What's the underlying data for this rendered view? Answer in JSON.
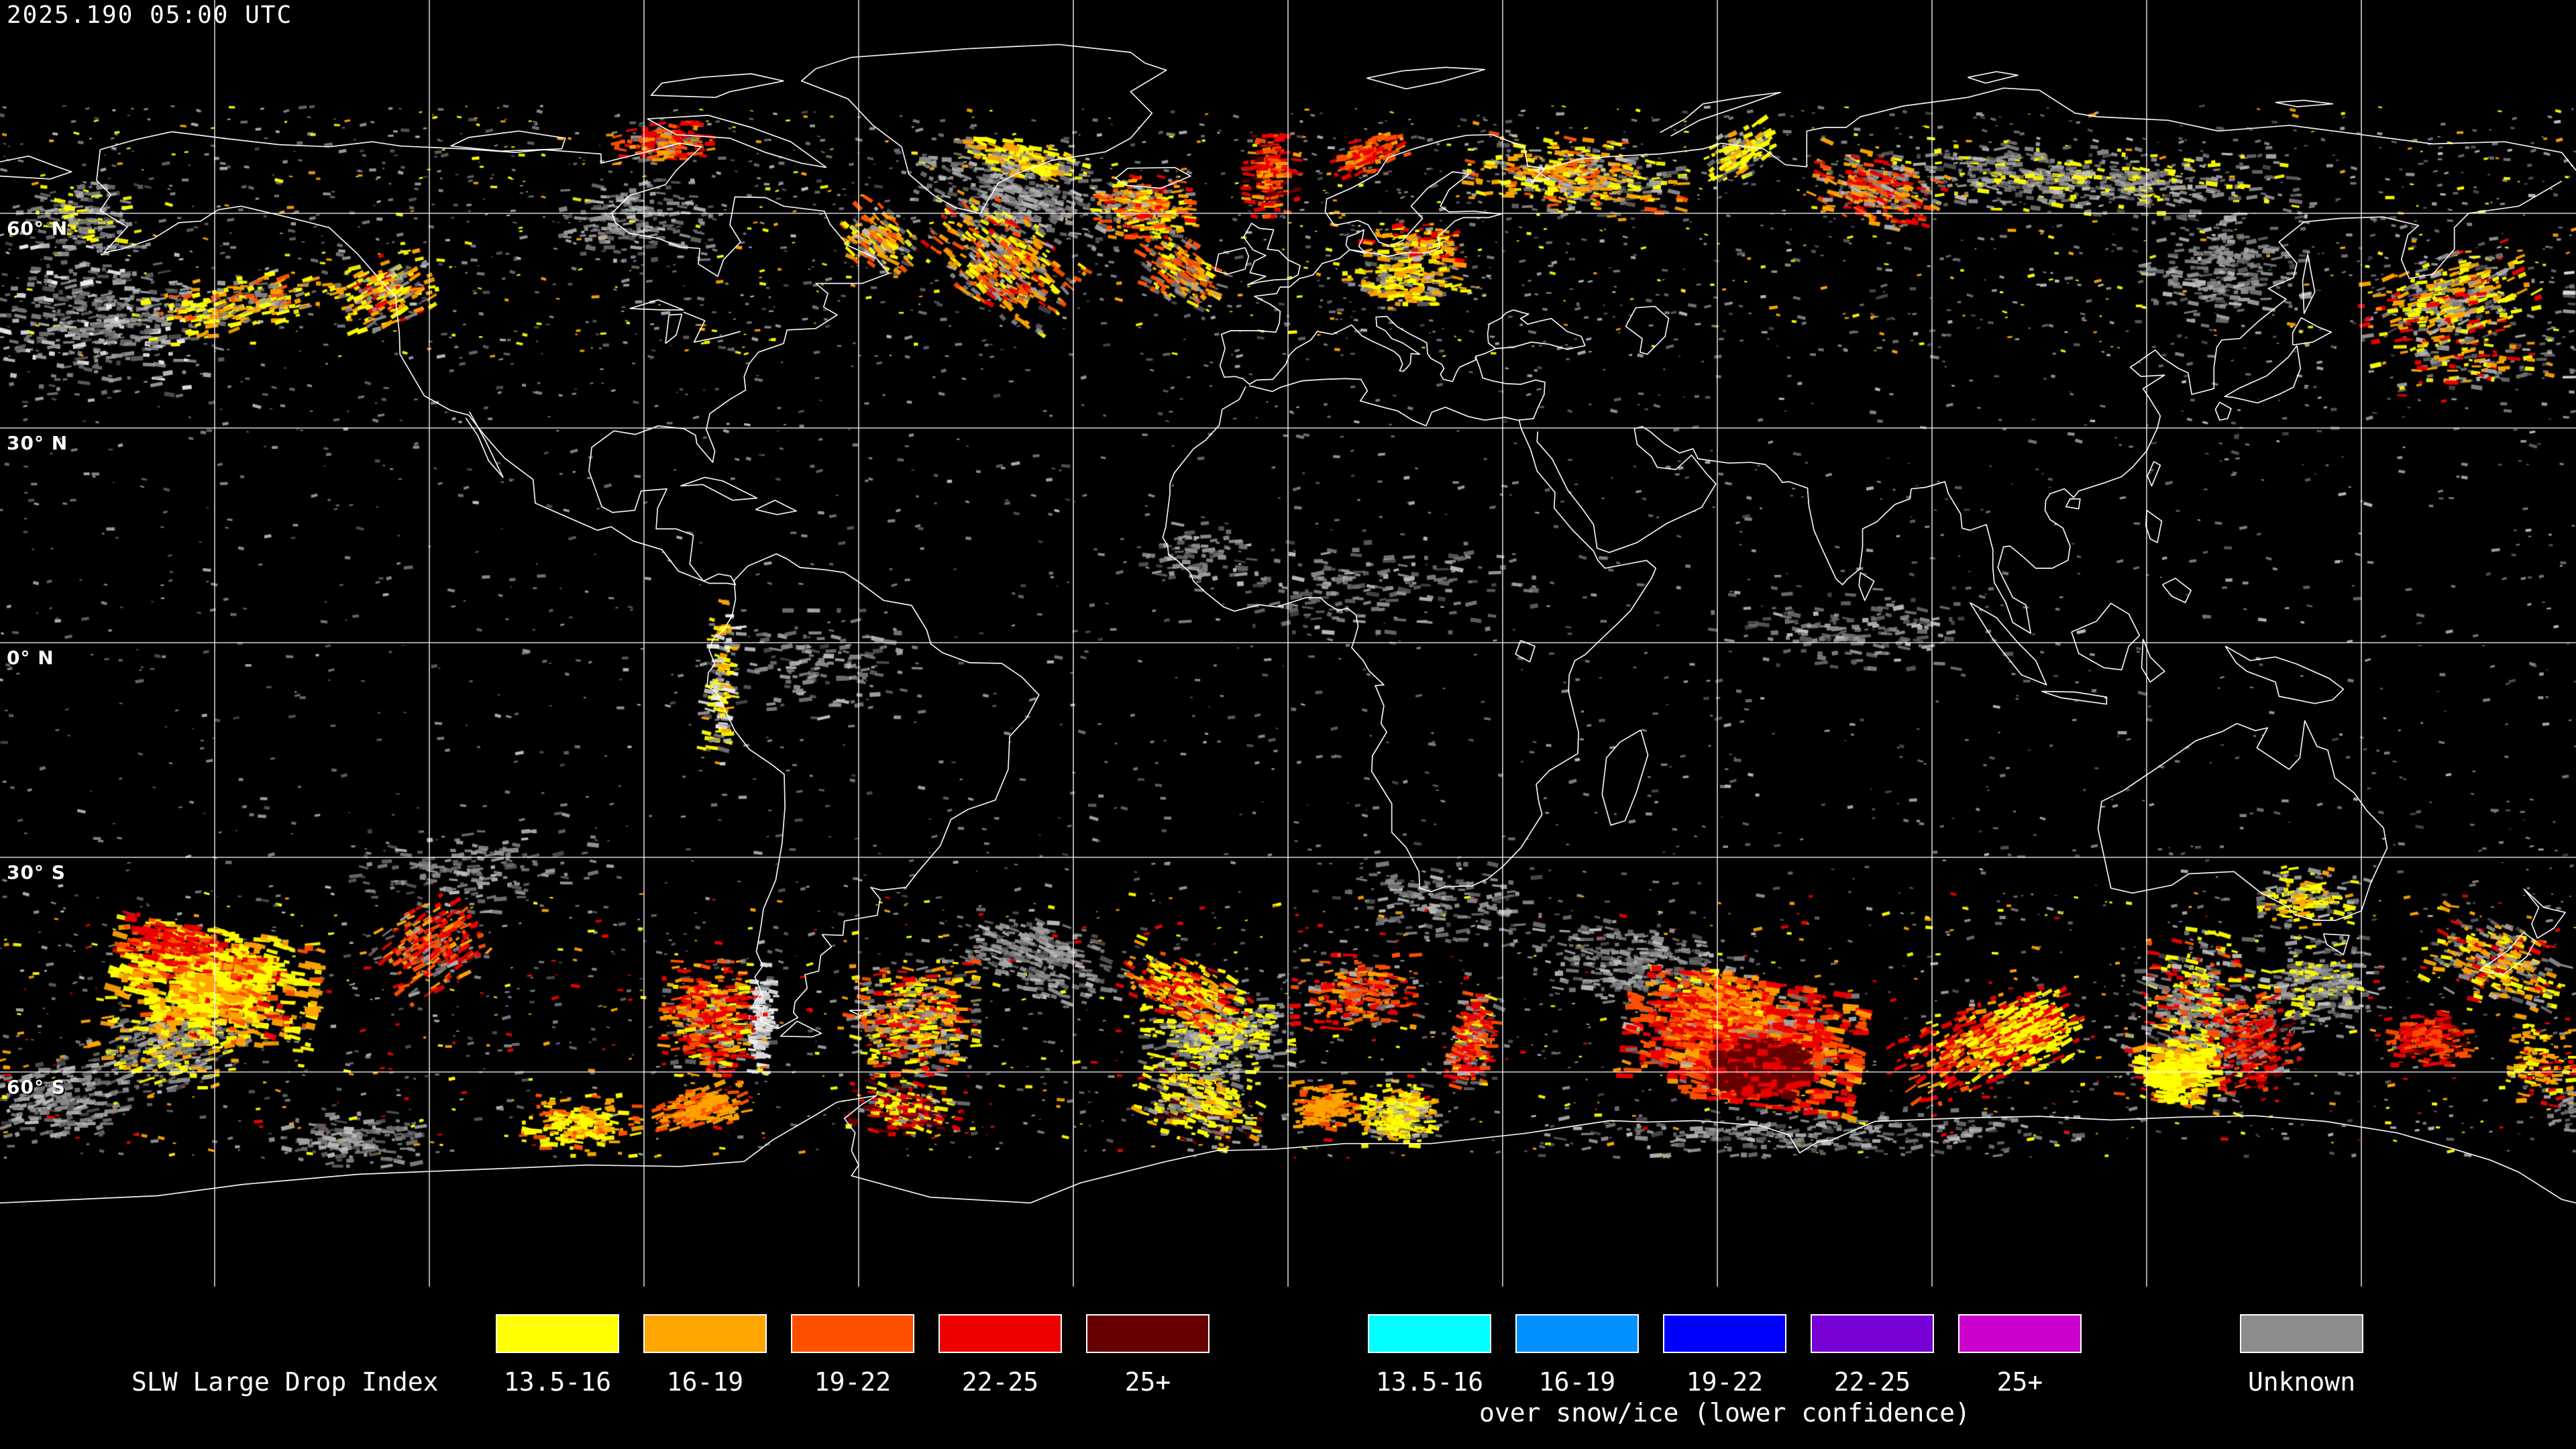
{
  "header": {
    "timestamp": "2025.190 05:00 UTC"
  },
  "map": {
    "projection": "equirectangular",
    "lat_labels": [
      {
        "label": "60° N",
        "lat": 60
      },
      {
        "label": "30° N",
        "lat": 30
      },
      {
        "label": "0° N",
        "lat": 0
      },
      {
        "label": "30° S",
        "lat": -30
      },
      {
        "label": "60° S",
        "lat": -60
      }
    ],
    "grid": {
      "lon_lines": [
        -150,
        -120,
        -90,
        -60,
        -30,
        0,
        30,
        60,
        90,
        120,
        150
      ],
      "lat_lines": [
        60,
        30,
        0,
        -30,
        -60
      ],
      "line_color": "#ffffff"
    },
    "coast_color": "#ffffff",
    "background_color": "#000000",
    "palette": {
      "y": "#ffff00",
      "o": "#ffa500",
      "rr": "#ff5000",
      "r": "#ee0000",
      "dr": "#660000",
      "g": "#8c8c8c",
      "w": "#e6e6e6"
    },
    "sprinkle_bands": [
      {
        "lat0": 40,
        "lat1": 75,
        "n": 2400,
        "w": {
          "g": 6,
          "y": 1,
          "o": 1
        }
      },
      {
        "lat0": 20,
        "lat1": 40,
        "n": 500,
        "w": {
          "g": 2
        }
      },
      {
        "lat0": -20,
        "lat1": 20,
        "n": 800,
        "w": {
          "g": 1
        }
      },
      {
        "lat0": -35,
        "lat1": -20,
        "n": 350,
        "w": {
          "g": 2
        }
      },
      {
        "lat0": -72,
        "lat1": -35,
        "n": 2000,
        "w": {
          "g": 5,
          "y": 1,
          "o": 1,
          "r": 1
        }
      }
    ],
    "clusters": [
      {
        "id": "ne-pacific-cloud",
        "lon": -165,
        "lat": 45,
        "rx": 170,
        "ry": 110,
        "rot": 0,
        "n": 420,
        "w": {
          "g": 5,
          "w": 1
        }
      },
      {
        "id": "bering-west-cloud",
        "lon": -168.8,
        "lat": 59,
        "rx": 90,
        "ry": 50,
        "rot": 0,
        "n": 160,
        "w": {
          "g": 3,
          "y": 1
        }
      },
      {
        "id": "hudson-cloud",
        "lon": -91,
        "lat": 59,
        "rx": 110,
        "ry": 60,
        "rot": 0,
        "n": 180,
        "w": {
          "g": 3
        }
      },
      {
        "id": "greenland-cloud-deck",
        "lon": -38.4,
        "lat": 62.8,
        "rx": 140,
        "ry": 55,
        "rot": 15,
        "n": 320,
        "w": {
          "g": 4
        }
      },
      {
        "id": "arctic-siberia-band",
        "lon": 110,
        "lat": 64.7,
        "rx": 330,
        "ry": 50,
        "rot": 3,
        "n": 520,
        "w": {
          "g": 4,
          "y": 1
        }
      },
      {
        "id": "okhotsk-cloud",
        "lon": 131,
        "lat": 52.5,
        "rx": 120,
        "ry": 80,
        "rot": 0,
        "n": 240,
        "w": {
          "g": 3
        }
      },
      {
        "id": "itcz-africa-cloud",
        "lon": 10,
        "lat": 8,
        "rx": 260,
        "ry": 70,
        "rot": 0,
        "n": 180,
        "w": {
          "g": 2
        }
      },
      {
        "id": "itcz-indian-cloud",
        "lon": 80,
        "lat": 2,
        "rx": 220,
        "ry": 60,
        "rot": 0,
        "n": 150,
        "w": {
          "g": 2
        }
      },
      {
        "id": "amazon-cloud",
        "lon": -65,
        "lat": -3,
        "rx": 150,
        "ry": 80,
        "rot": 0,
        "n": 140,
        "w": {
          "g": 2
        }
      },
      {
        "id": "wafrica-cloud",
        "lon": -13,
        "lat": 12,
        "rx": 80,
        "ry": 50,
        "rot": 0,
        "n": 80,
        "w": {
          "g": 2
        }
      },
      {
        "id": "spac-subtrop-cloud",
        "lon": -114,
        "lat": -32,
        "rx": 180,
        "ry": 60,
        "rot": 0,
        "n": 160,
        "w": {
          "g": 2
        }
      },
      {
        "id": "s-africa-cloud",
        "lon": 21.6,
        "lat": -36.6,
        "rx": 140,
        "ry": 60,
        "rot": 0,
        "n": 160,
        "w": {
          "g": 2
        }
      },
      {
        "id": "s-atlantic-midlat-cloud",
        "lon": -34.7,
        "lat": -44,
        "rx": 130,
        "ry": 55,
        "rot": 15,
        "n": 260,
        "w": {
          "g": 3
        }
      },
      {
        "id": "s-indian-midlat-cloud",
        "lon": 49.7,
        "lat": -45,
        "rx": 160,
        "ry": 60,
        "rot": 5,
        "n": 280,
        "w": {
          "g": 3
        }
      },
      {
        "id": "far-spac-cloud",
        "lon": -171.6,
        "lat": -63.8,
        "rx": 130,
        "ry": 60,
        "rot": -10,
        "n": 260,
        "w": {
          "g": 4
        }
      },
      {
        "id": "sep-south-cloud",
        "lon": -156,
        "lat": -56.3,
        "rx": 120,
        "ry": 70,
        "rot": -10,
        "n": 400,
        "w": {
          "g": 4,
          "o": 1,
          "y": 1
        }
      },
      {
        "id": "s-atlantic-swirl-cloud",
        "lon": -9.8,
        "lat": -54.8,
        "rx": 110,
        "ry": 70,
        "rot": 0,
        "n": 420,
        "w": {
          "g": 4,
          "y": 2
        }
      },
      {
        "id": "tasmania-front-cloud",
        "lon": 126.6,
        "lat": -52.5,
        "rx": 90,
        "ry": 130,
        "rot": 10,
        "n": 550,
        "w": {
          "g": 4,
          "y": 2,
          "rr": 1,
          "r": 1
        }
      },
      {
        "id": "tasman-cloud",
        "lon": 144.4,
        "lat": -47.8,
        "rx": 90,
        "ry": 70,
        "rot": 0,
        "n": 260,
        "w": {
          "g": 3,
          "y": 1
        }
      },
      {
        "id": "antarctic-coast-cloud",
        "lon": 73,
        "lat": -68.4,
        "rx": 400,
        "ry": 35,
        "rot": 0,
        "n": 260,
        "w": {
          "g": 3
        }
      },
      {
        "id": "ross-cloud",
        "lon": -131,
        "lat": -69.4,
        "rx": 120,
        "ry": 40,
        "rot": 0,
        "n": 150,
        "w": {
          "g": 3
        }
      },
      {
        "id": "drake-cyclone",
        "lon": -52.5,
        "lat": -52.5,
        "rx": 95,
        "ry": 85,
        "rot": 0,
        "n": 480,
        "w": {
          "g": 3,
          "o": 2,
          "rr": 1,
          "y": 2,
          "r": 1
        }
      },
      {
        "id": "wpac-specks",
        "lon": 166,
        "lat": 39.4,
        "rx": 110,
        "ry": 60,
        "rot": 0,
        "n": 140,
        "w": {
          "y": 1,
          "o": 1,
          "r": 1,
          "g": 2
        }
      },
      {
        "id": "nz-northwest-specks",
        "lon": 168.8,
        "lat": -45,
        "rx": 100,
        "ry": 60,
        "rot": 20,
        "n": 280,
        "w": {
          "g": 2,
          "o": 2,
          "r": 1,
          "y": 1
        }
      },
      {
        "id": "aleutian-streaks",
        "lon": -146.2,
        "lat": 47.3,
        "rx": 140,
        "ry": 38,
        "rot": -12,
        "n": 240,
        "w": {
          "y": 3,
          "o": 2,
          "rr": 1,
          "g": 2
        }
      },
      {
        "id": "gulf-alaska-streaks",
        "lon": -126.1,
        "lat": 49.2,
        "rx": 70,
        "ry": 50,
        "rot": -25,
        "n": 190,
        "w": {
          "y": 2,
          "o": 2,
          "r": 1,
          "g": 2
        }
      },
      {
        "id": "canadian-arctic-red",
        "lon": -87.2,
        "lat": 69.8,
        "rx": 70,
        "ry": 30,
        "rot": 0,
        "n": 150,
        "w": {
          "r": 2,
          "rr": 2,
          "o": 1,
          "g": 1
        }
      },
      {
        "id": "labrador-streaks",
        "lon": -57.2,
        "lat": 56.3,
        "rx": 55,
        "ry": 45,
        "rot": 35,
        "n": 140,
        "w": {
          "o": 2,
          "rr": 1,
          "y": 1,
          "g": 2
        }
      },
      {
        "id": "greenland-se-storm",
        "lon": -39.8,
        "lat": 53.4,
        "rx": 110,
        "ry": 70,
        "rot": 35,
        "n": 420,
        "w": {
          "o": 2,
          "rr": 2,
          "r": 1,
          "y": 2,
          "g": 3
        }
      },
      {
        "id": "greenland-east-yellow",
        "lon": -36.6,
        "lat": 67.5,
        "rx": 90,
        "ry": 26,
        "rot": 12,
        "n": 170,
        "w": {
          "y": 3,
          "o": 2,
          "g": 2
        }
      },
      {
        "id": "iceland-storm",
        "lon": -20.2,
        "lat": 60.9,
        "rx": 70,
        "ry": 45,
        "rot": 0,
        "n": 260,
        "w": {
          "o": 2,
          "rr": 2,
          "y": 2,
          "r": 1,
          "g": 2
        }
      },
      {
        "id": "norwegian-sea-red",
        "lon": -2.3,
        "lat": 65.2,
        "rx": 38,
        "ry": 60,
        "rot": 0,
        "n": 160,
        "w": {
          "r": 3,
          "rr": 2,
          "dr": 1,
          "o": 1
        }
      },
      {
        "id": "s-iceland-streaks",
        "lon": -15,
        "lat": 52,
        "rx": 65,
        "ry": 45,
        "rot": 30,
        "n": 180,
        "w": {
          "rr": 2,
          "o": 2,
          "y": 1,
          "g": 2
        }
      },
      {
        "id": "norway-coast-red",
        "lon": 11.2,
        "lat": 68.2,
        "rx": 55,
        "ry": 25,
        "rot": -20,
        "n": 110,
        "w": {
          "r": 2,
          "rr": 2,
          "o": 1
        }
      },
      {
        "id": "kola-band",
        "lon": 40.3,
        "lat": 65.2,
        "rx": 160,
        "ry": 55,
        "rot": 5,
        "n": 420,
        "w": {
          "y": 2,
          "o": 2,
          "rr": 1,
          "g": 3
        }
      },
      {
        "id": "novaya-zemlya-yellow",
        "lon": 63.3,
        "lat": 68.6,
        "rx": 55,
        "ry": 35,
        "rot": -30,
        "n": 120,
        "w": {
          "y": 3,
          "o": 1,
          "g": 1
        }
      },
      {
        "id": "baltic-specks",
        "lon": 17.8,
        "lat": 55.1,
        "rx": 80,
        "ry": 40,
        "rot": 0,
        "n": 150,
        "w": {
          "o": 2,
          "r": 1,
          "y": 1,
          "g": 1
        }
      },
      {
        "id": "central-europe-specks",
        "lon": 16.4,
        "lat": 50.6,
        "rx": 90,
        "ry": 35,
        "rot": 0,
        "n": 170,
        "w": {
          "y": 2,
          "o": 2,
          "g": 2
        }
      },
      {
        "id": "west-siberia-streaks",
        "lon": 82.5,
        "lat": 63.3,
        "rx": 95,
        "ry": 50,
        "rot": 15,
        "n": 260,
        "w": {
          "o": 2,
          "r": 2,
          "rr": 1,
          "g": 2
        }
      },
      {
        "id": "kamchatka-cluster",
        "lon": 162.2,
        "lat": 47.8,
        "rx": 130,
        "ry": 65,
        "rot": -15,
        "n": 360,
        "w": {
          "y": 2,
          "o": 2,
          "r": 1,
          "g": 3
        }
      },
      {
        "id": "andes-north-specks",
        "lon": -79.2,
        "lat": -5.6,
        "rx": 22,
        "ry": 120,
        "rot": 5,
        "n": 130,
        "w": {
          "y": 2,
          "o": 1,
          "g": 1,
          "w": 1
        }
      },
      {
        "id": "andes-snow",
        "lon": -73.5,
        "lat": -52.5,
        "rx": 18,
        "ry": 80,
        "rot": 5,
        "n": 150,
        "w": {
          "w": 4,
          "g": 1
        }
      },
      {
        "id": "sep-yellow-mass",
        "lon": -150,
        "lat": -47.8,
        "rx": 150,
        "ry": 80,
        "rot": 8,
        "n": 750,
        "sz": [
          8,
          26,
          4,
          10
        ],
        "w": {
          "y": 4,
          "o": 3,
          "rr": 1,
          "r": 1
        }
      },
      {
        "id": "sep-north-red",
        "lon": -156,
        "lat": -41.7,
        "rx": 70,
        "ry": 30,
        "rot": 10,
        "n": 140,
        "w": {
          "r": 3,
          "rr": 1
        }
      },
      {
        "id": "spac-red-streaks",
        "lon": -120,
        "lat": -42.7,
        "rx": 75,
        "ry": 60,
        "rot": -30,
        "n": 240,
        "w": {
          "r": 3,
          "rr": 2,
          "o": 1,
          "g": 1
        }
      },
      {
        "id": "chile-red-storm",
        "lon": -80.2,
        "lat": -52.5,
        "rx": 75,
        "ry": 85,
        "rot": 0,
        "n": 420,
        "w": {
          "r": 3,
          "rr": 2,
          "o": 2,
          "y": 1,
          "g": 1
        }
      },
      {
        "id": "bellingshausen-orange-arc",
        "lon": -82,
        "lat": -65.2,
        "rx": 65,
        "ry": 30,
        "rot": -15,
        "n": 180,
        "w": {
          "o": 3,
          "rr": 2
        }
      },
      {
        "id": "weddell-red-yellow",
        "lon": -53.4,
        "lat": -65.2,
        "rx": 85,
        "ry": 40,
        "rot": 10,
        "n": 240,
        "w": {
          "r": 2,
          "dr": 2,
          "y": 2,
          "g": 1
        }
      },
      {
        "id": "s-atlantic-streak",
        "lon": -14.1,
        "lat": -48.8,
        "rx": 95,
        "ry": 45,
        "rot": 25,
        "n": 260,
        "w": {
          "y": 3,
          "o": 2,
          "r": 2,
          "rr": 1
        }
      },
      {
        "id": "s-atlantic-yellow-south",
        "lon": -12.2,
        "lat": -64.7,
        "rx": 90,
        "ry": 55,
        "rot": 15,
        "n": 300,
        "w": {
          "y": 3,
          "o": 1,
          "dr": 1,
          "g": 2
        }
      },
      {
        "id": "s-indian-red-dots",
        "lon": 9.4,
        "lat": -48.8,
        "rx": 90,
        "ry": 55,
        "rot": 0,
        "n": 220,
        "w": {
          "r": 2,
          "rr": 2,
          "o": 1,
          "g": 1
        }
      },
      {
        "id": "s-indian-orange-south",
        "lon": 5.2,
        "lat": -64.7,
        "rx": 50,
        "ry": 35,
        "rot": 0,
        "n": 140,
        "w": {
          "o": 3,
          "rr": 1
        }
      },
      {
        "id": "s-indian-yellow-block",
        "lon": 15.9,
        "lat": -66.1,
        "rx": 55,
        "ry": 45,
        "rot": 0,
        "n": 260,
        "w": {
          "y": 3,
          "o": 1,
          "g": 1
        }
      },
      {
        "id": "s-indian-red-band",
        "lon": 25.8,
        "lat": -55.8,
        "rx": 30,
        "ry": 70,
        "rot": 10,
        "n": 240,
        "w": {
          "r": 3,
          "rr": 2,
          "g": 2,
          "y": 1
        }
      },
      {
        "id": "kerguelen-red-mass",
        "lon": 63.8,
        "lat": -55.8,
        "rx": 170,
        "ry": 90,
        "rot": 8,
        "n": 1100,
        "sz": [
          8,
          28,
          4,
          10
        ],
        "w": {
          "r": 5,
          "rr": 3,
          "o": 2,
          "g": 1
        }
      },
      {
        "id": "kerguelen-dark-core",
        "lon": 66.1,
        "lat": -59.5,
        "rx": 65,
        "ry": 40,
        "rot": 0,
        "n": 420,
        "sz": [
          10,
          30,
          6,
          14
        ],
        "w": {
          "dr": 6,
          "r": 2
        }
      },
      {
        "id": "kerguelen-orange-head",
        "lon": 60,
        "lat": -50.2,
        "rx": 80,
        "ry": 45,
        "rot": 10,
        "n": 300,
        "w": {
          "o": 3,
          "rr": 3,
          "r": 2,
          "y": 1
        }
      },
      {
        "id": "east-red-streaks",
        "lon": 96.6,
        "lat": -56.3,
        "rx": 120,
        "ry": 55,
        "rot": -25,
        "n": 340,
        "w": {
          "r": 3,
          "rr": 2,
          "o": 1,
          "y": 1
        }
      },
      {
        "id": "sio-yellow-cluster",
        "lon": 104.1,
        "lat": -54.4,
        "rx": 75,
        "ry": 55,
        "rot": -20,
        "n": 300,
        "w": {
          "y": 4,
          "r": 2,
          "o": 1
        }
      },
      {
        "id": "tasmania-yellow-mass",
        "lon": 124.7,
        "lat": -60,
        "rx": 60,
        "ry": 45,
        "rot": 0,
        "n": 260,
        "sz": [
          8,
          24,
          4,
          9
        ],
        "w": {
          "y": 4,
          "o": 1
        }
      },
      {
        "id": "tasmania-red-arc",
        "lon": 135,
        "lat": -56.3,
        "rx": 60,
        "ry": 70,
        "rot": -15,
        "n": 240,
        "w": {
          "r": 2,
          "rr": 2,
          "dr": 1,
          "g": 1
        }
      },
      {
        "id": "se-australia-yellow",
        "lon": 142.5,
        "lat": -35.6,
        "rx": 70,
        "ry": 45,
        "rot": 0,
        "n": 150,
        "w": {
          "y": 2,
          "o": 1,
          "g": 2
        }
      },
      {
        "id": "nz-south-red",
        "lon": 159.4,
        "lat": -55.3,
        "rx": 60,
        "ry": 40,
        "rot": 0,
        "n": 200,
        "w": {
          "r": 2,
          "rr": 2,
          "dr": 1
        }
      },
      {
        "id": "far-se-specks",
        "lon": 175.3,
        "lat": -59.1,
        "rx": 60,
        "ry": 60,
        "rot": 0,
        "n": 120,
        "w": {
          "o": 2,
          "y": 1,
          "r": 1
        }
      },
      {
        "id": "bellingshausen-yellow",
        "lon": -98.9,
        "lat": -67.5,
        "rx": 85,
        "ry": 45,
        "rot": 0,
        "n": 220,
        "w": {
          "y": 2,
          "o": 2,
          "rr": 1
        }
      }
    ]
  },
  "legend": {
    "title": "SLW Large Drop Index",
    "bins": [
      "13.5-16",
      "16-19",
      "19-22",
      "22-25",
      "25+"
    ],
    "normal_colors": [
      "#ffff00",
      "#ffa500",
      "#ff5000",
      "#ee0000",
      "#660000"
    ],
    "snow_colors": [
      "#00ffff",
      "#0090ff",
      "#0000ff",
      "#7700d4",
      "#cc00cc"
    ],
    "snow_caption": "over snow/ice (lower confidence)",
    "unknown_label": "Unknown",
    "unknown_color": "#8c8c8c"
  }
}
